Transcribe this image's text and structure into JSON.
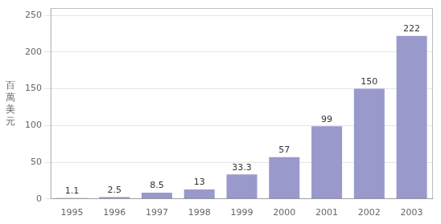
{
  "chart_data": {
    "type": "bar",
    "categories": [
      "1995",
      "1996",
      "1997",
      "1998",
      "1999",
      "2000",
      "2001",
      "2002",
      "2003"
    ],
    "values": [
      1.1,
      2.5,
      8.5,
      13,
      33.3,
      57,
      99,
      150,
      222
    ],
    "color": "#9999cc",
    "ylabel": "百\n萬\n美\n元",
    "ylim": [
      0,
      260
    ],
    "yticks": [
      0,
      50,
      100,
      150,
      200,
      250
    ],
    "grid": true,
    "data_labels": true
  }
}
